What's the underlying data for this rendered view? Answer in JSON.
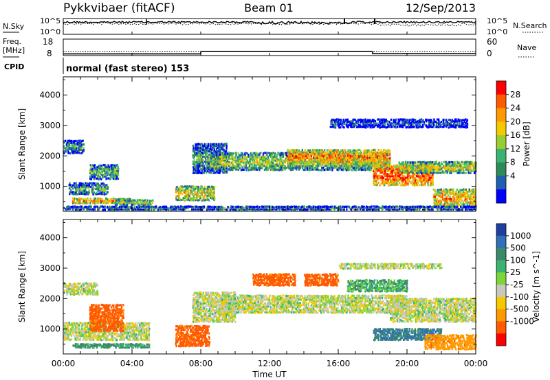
{
  "header": {
    "station": "Pykkvibaer (fitACF)",
    "beam": "Beam 01",
    "date": "12/Sep/2013"
  },
  "panels": {
    "nsky": {
      "label": "N.Sky",
      "left_ticks": [
        "10^5",
        "10^0"
      ],
      "right_ticks": [
        "10^5",
        "10^0"
      ],
      "right_label": "N.Search",
      "right_line": "dotted"
    },
    "freq": {
      "label_line1": "Freq.",
      "label_line2": "[MHz]",
      "left_ticks": [
        "18",
        "8"
      ],
      "right_ticks": [
        "60",
        "0"
      ],
      "right_label": "Nave",
      "right_line": "dotted",
      "freq_segments": [
        {
          "from": "00:00",
          "to": "08:00",
          "level": 9.0
        },
        {
          "from": "08:00",
          "to": "18:00",
          "level": 10.4
        },
        {
          "from": "18:00",
          "to": "24:00",
          "level": 9.1
        }
      ],
      "nave_level": 14
    },
    "cpid": {
      "label": "CPID",
      "text": "normal (fast stereo) 153"
    }
  },
  "chart_data": [
    {
      "type": "heatmap",
      "title": "",
      "quantity": "Power",
      "colorbar_label": "Power [dB]",
      "colorbar_ticks": [
        "28",
        "24",
        "20",
        "16",
        "12",
        "8",
        "4"
      ],
      "colorbar_colors": [
        "#ff0000",
        "#ff5a00",
        "#ff9900",
        "#f5c800",
        "#9acd32",
        "#3cb371",
        "#2e8b57",
        "#1f5fb0",
        "#0000ff"
      ],
      "ylabel": "Slant Range [km]",
      "yticks": [
        "4000",
        "3000",
        "2000",
        "1000"
      ],
      "ylim": [
        180,
        4600
      ],
      "xlim_hours": [
        0,
        24
      ],
      "bands": [
        {
          "t0": 0.0,
          "t1": 1.2,
          "r0": 2050,
          "r1": 2500,
          "level": 0.35
        },
        {
          "t0": 0.3,
          "t1": 2.6,
          "r0": 700,
          "r1": 1100,
          "level": 0.4
        },
        {
          "t0": 1.5,
          "t1": 3.2,
          "r0": 1200,
          "r1": 1700,
          "level": 0.45
        },
        {
          "t0": 0.5,
          "t1": 4.0,
          "r0": 400,
          "r1": 600,
          "level": 0.7
        },
        {
          "t0": 3.0,
          "t1": 5.2,
          "r0": 350,
          "r1": 550,
          "level": 0.55
        },
        {
          "t0": 6.5,
          "t1": 8.8,
          "r0": 500,
          "r1": 1000,
          "level": 0.65
        },
        {
          "t0": 7.5,
          "t1": 9.5,
          "r0": 1400,
          "r1": 2400,
          "level": 0.4
        },
        {
          "t0": 8.5,
          "t1": 19.0,
          "r0": 1500,
          "r1": 2100,
          "level": 0.55
        },
        {
          "t0": 13.0,
          "t1": 19.0,
          "r0": 1700,
          "r1": 2200,
          "level": 0.8
        },
        {
          "t0": 18.0,
          "t1": 21.5,
          "r0": 1000,
          "r1": 1700,
          "level": 0.9
        },
        {
          "t0": 19.5,
          "t1": 24.0,
          "r0": 1400,
          "r1": 1800,
          "level": 0.6
        },
        {
          "t0": 21.5,
          "t1": 24.0,
          "r0": 300,
          "r1": 900,
          "level": 0.75
        },
        {
          "t0": 15.5,
          "t1": 23.5,
          "r0": 2900,
          "r1": 3200,
          "level": 0.2
        },
        {
          "t0": 0.0,
          "t1": 24.0,
          "r0": 200,
          "r1": 330,
          "level": 0.3
        }
      ]
    },
    {
      "type": "heatmap",
      "title": "",
      "quantity": "Velocity",
      "colorbar_label": "Velocity [m s^-1]",
      "colorbar_ticks": [
        "1000",
        "500",
        "100",
        "25",
        "-25",
        "-100",
        "-500",
        "-1000"
      ],
      "colorbar_colors": [
        "#1f3fa0",
        "#2f6fb8",
        "#3a8a6a",
        "#3cb371",
        "#7bd63a",
        "#c8c8c0",
        "#f5c800",
        "#ff9900",
        "#ff5a00",
        "#ff0000"
      ],
      "ylabel": "Slant Range [km]",
      "yticks": [
        "4000",
        "3000",
        "2000",
        "1000"
      ],
      "ylim": [
        180,
        4600
      ],
      "xlabel": "Time UT",
      "xticks": [
        "00:00",
        "04:00",
        "08:00",
        "12:00",
        "16:00",
        "20:00",
        "00:00"
      ],
      "xlim_hours": [
        0,
        24
      ],
      "bands": [
        {
          "t0": 0.0,
          "t1": 2.0,
          "r0": 2100,
          "r1": 2500,
          "v": 0
        },
        {
          "t0": 0.0,
          "t1": 5.0,
          "r0": 600,
          "r1": 1200,
          "v": 0
        },
        {
          "t0": 1.5,
          "t1": 3.5,
          "r0": 900,
          "r1": 1800,
          "v": -300
        },
        {
          "t0": 0.5,
          "t1": 5.0,
          "r0": 350,
          "r1": 500,
          "v": 120
        },
        {
          "t0": 6.5,
          "t1": 8.5,
          "r0": 400,
          "r1": 1100,
          "v": -300
        },
        {
          "t0": 7.5,
          "t1": 10.0,
          "r0": 1200,
          "r1": 2200,
          "v": 0
        },
        {
          "t0": 9.0,
          "t1": 20.0,
          "r0": 1500,
          "r1": 2100,
          "v": 0
        },
        {
          "t0": 11.0,
          "t1": 13.5,
          "r0": 2400,
          "r1": 2800,
          "v": -300
        },
        {
          "t0": 14.0,
          "t1": 16.0,
          "r0": 2400,
          "r1": 2800,
          "v": -300
        },
        {
          "t0": 16.5,
          "t1": 20.0,
          "r0": 2200,
          "r1": 2600,
          "v": 80
        },
        {
          "t0": 18.0,
          "t1": 22.0,
          "r0": 600,
          "r1": 1000,
          "v": 300
        },
        {
          "t0": 19.0,
          "t1": 24.0,
          "r0": 1200,
          "r1": 2000,
          "v": 0
        },
        {
          "t0": 21.0,
          "t1": 24.0,
          "r0": 300,
          "r1": 800,
          "v": -200
        },
        {
          "t0": 16.0,
          "t1": 22.0,
          "r0": 2950,
          "r1": 3150,
          "v": 0
        }
      ]
    }
  ]
}
